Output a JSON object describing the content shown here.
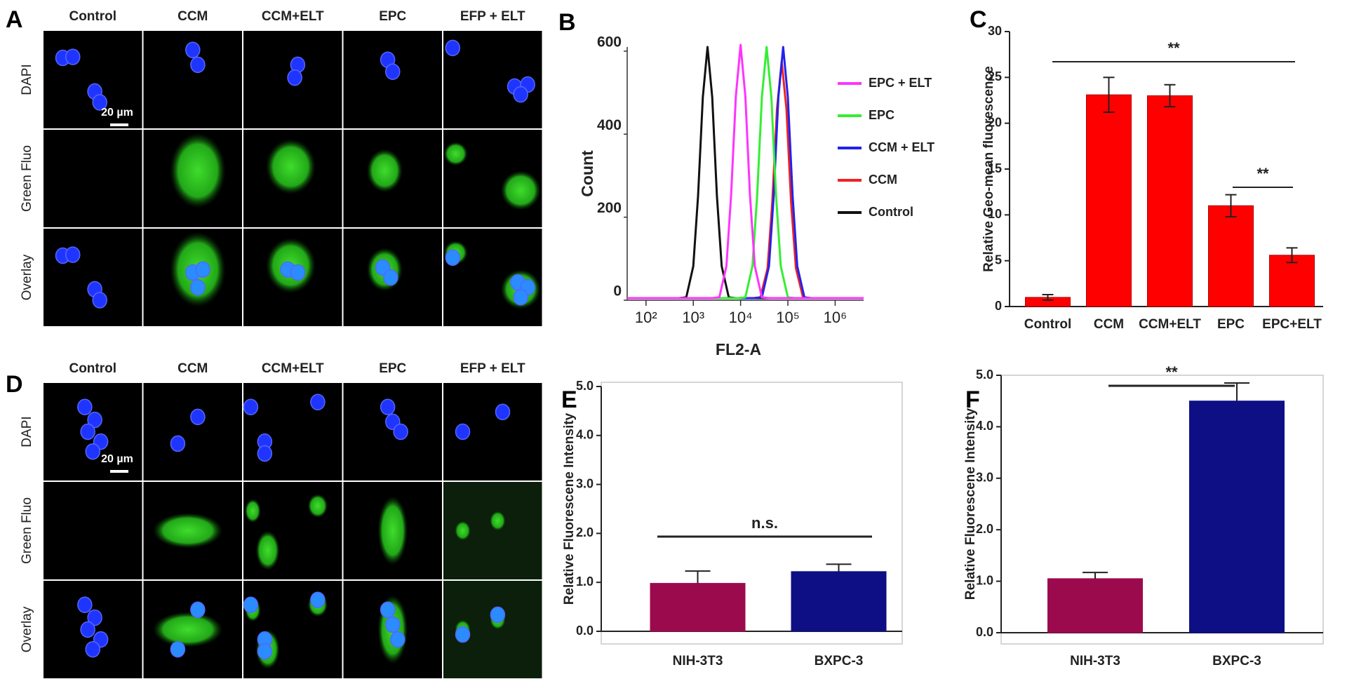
{
  "figure": {
    "A": {
      "letter": "A",
      "columns": [
        "Control",
        "CCM",
        "CCM+ELT",
        "EPC",
        "EFP + ELT"
      ],
      "rows": [
        "DAPI",
        "Green Fluo",
        "Overlay"
      ],
      "scale_bar": "20 µm"
    },
    "D": {
      "letter": "D",
      "columns": [
        "Control",
        "CCM",
        "CCM+ELT",
        "EPC",
        "EFP + ELT"
      ],
      "rows": [
        "DAPI",
        "Green Fluo",
        "Overlay"
      ],
      "scale_bar": "20 µm"
    }
  },
  "chart_data": [
    {
      "panel": "B",
      "type": "line",
      "x_label": "FL2-A",
      "y_label": "Count",
      "xlog": true,
      "xlim": [
        40,
        4000000
      ],
      "xticks": [
        {
          "value": 100,
          "label": "10²"
        },
        {
          "value": 1000,
          "label": "10³"
        },
        {
          "value": 10000,
          "label": "10⁴"
        },
        {
          "value": 100000,
          "label": "10⁵"
        },
        {
          "value": 1000000,
          "label": "10⁶"
        }
      ],
      "ylim": [
        0,
        610
      ],
      "yticks": [
        0,
        200,
        400,
        600
      ],
      "legend": "right",
      "series": [
        {
          "name": "EPC + ELT",
          "color": "#ff33ff",
          "x": [
            40,
            2510,
            3550,
            5010,
            6310,
            7940,
            10000,
            12600,
            15800,
            20000,
            28200,
            39800,
            4000000
          ],
          "values": [
            5,
            5,
            7,
            82,
            253,
            492,
            615,
            492,
            253,
            82,
            7,
            5,
            5
          ]
        },
        {
          "name": "EPC",
          "color": "#33ee33",
          "x": [
            40,
            8910,
            12600,
            17800,
            22400,
            28200,
            35500,
            44700,
            56200,
            70800,
            100000,
            141000,
            4000000
          ],
          "values": [
            5,
            5,
            7,
            82,
            251,
            489,
            610,
            489,
            251,
            82,
            7,
            5,
            5
          ]
        },
        {
          "name": "CCM + ELT",
          "color": "#2222ee",
          "x": [
            40,
            20000,
            28200,
            39800,
            50100,
            63100,
            79400,
            100000,
            126000,
            158000,
            224000,
            316000,
            4000000
          ],
          "values": [
            5,
            5,
            7,
            82,
            251,
            489,
            610,
            489,
            251,
            82,
            7,
            5,
            5
          ]
        },
        {
          "name": "CCM",
          "color": "#ee2222",
          "x": [
            40,
            18600,
            26300,
            37200,
            46800,
            58900,
            74100,
            93300,
            117000,
            148000,
            209000,
            295000,
            4000000
          ],
          "values": [
            5,
            5,
            7,
            77,
            236,
            461,
            575,
            461,
            236,
            77,
            7,
            5,
            5
          ]
        },
        {
          "name": "Control",
          "color": "#111111",
          "x": [
            40,
            500,
            710,
            1000,
            1260,
            1590,
            2000,
            2510,
            3160,
            3980,
            5620,
            7940,
            4000000
          ],
          "values": [
            5,
            5,
            7,
            82,
            251,
            489,
            610,
            489,
            251,
            82,
            7,
            5,
            5
          ]
        }
      ]
    },
    {
      "panel": "C",
      "type": "bar",
      "y_label": "Relative Geo-mean fluorescence",
      "categories": [
        "Control",
        "CCM",
        "CCM+ELT",
        "EPC",
        "EPC+ELT"
      ],
      "values": [
        1.0,
        23.1,
        23.0,
        11.0,
        5.6
      ],
      "errors": [
        0.3,
        1.9,
        1.2,
        1.2,
        0.8
      ],
      "color": "#ff0000",
      "ylim": [
        0,
        30
      ],
      "yticks": [
        0,
        5,
        10,
        15,
        20,
        25,
        30
      ],
      "annotations": [
        "**",
        "**"
      ]
    },
    {
      "panel": "E",
      "type": "bar",
      "y_label": "Relative Fluorescene Intensity",
      "categories": [
        "NIH-3T3",
        "BXPC-3"
      ],
      "values": [
        0.98,
        1.22
      ],
      "errors": [
        0.25,
        0.15
      ],
      "colors": [
        "#9c0a4e",
        "#0e0e85"
      ],
      "ylim": [
        0,
        5
      ],
      "yticks": [
        {
          "value": 0,
          "label": "0.0"
        },
        {
          "value": 1,
          "label": "1.0"
        },
        {
          "value": 2,
          "label": "2.0"
        },
        {
          "value": 3,
          "label": "3.0"
        },
        {
          "value": 4,
          "label": "4.0"
        },
        {
          "value": 5,
          "label": "5.0"
        }
      ],
      "annotations": [
        "n.s."
      ]
    },
    {
      "panel": "F",
      "type": "bar",
      "y_label": "Relative Fluorescene Intensity",
      "categories": [
        "NIH-3T3",
        "BXPC-3"
      ],
      "values": [
        1.05,
        4.5
      ],
      "errors": [
        0.12,
        0.35
      ],
      "colors": [
        "#9c0a4e",
        "#0e0e85"
      ],
      "ylim": [
        0,
        5
      ],
      "yticks": [
        {
          "value": 0,
          "label": "0.0"
        },
        {
          "value": 1,
          "label": "1.0"
        },
        {
          "value": 2,
          "label": "2.0"
        },
        {
          "value": 3,
          "label": "3.0"
        },
        {
          "value": 4,
          "label": "4.0"
        },
        {
          "value": 5,
          "label": "5.0"
        }
      ],
      "annotations": [
        "**"
      ]
    }
  ]
}
